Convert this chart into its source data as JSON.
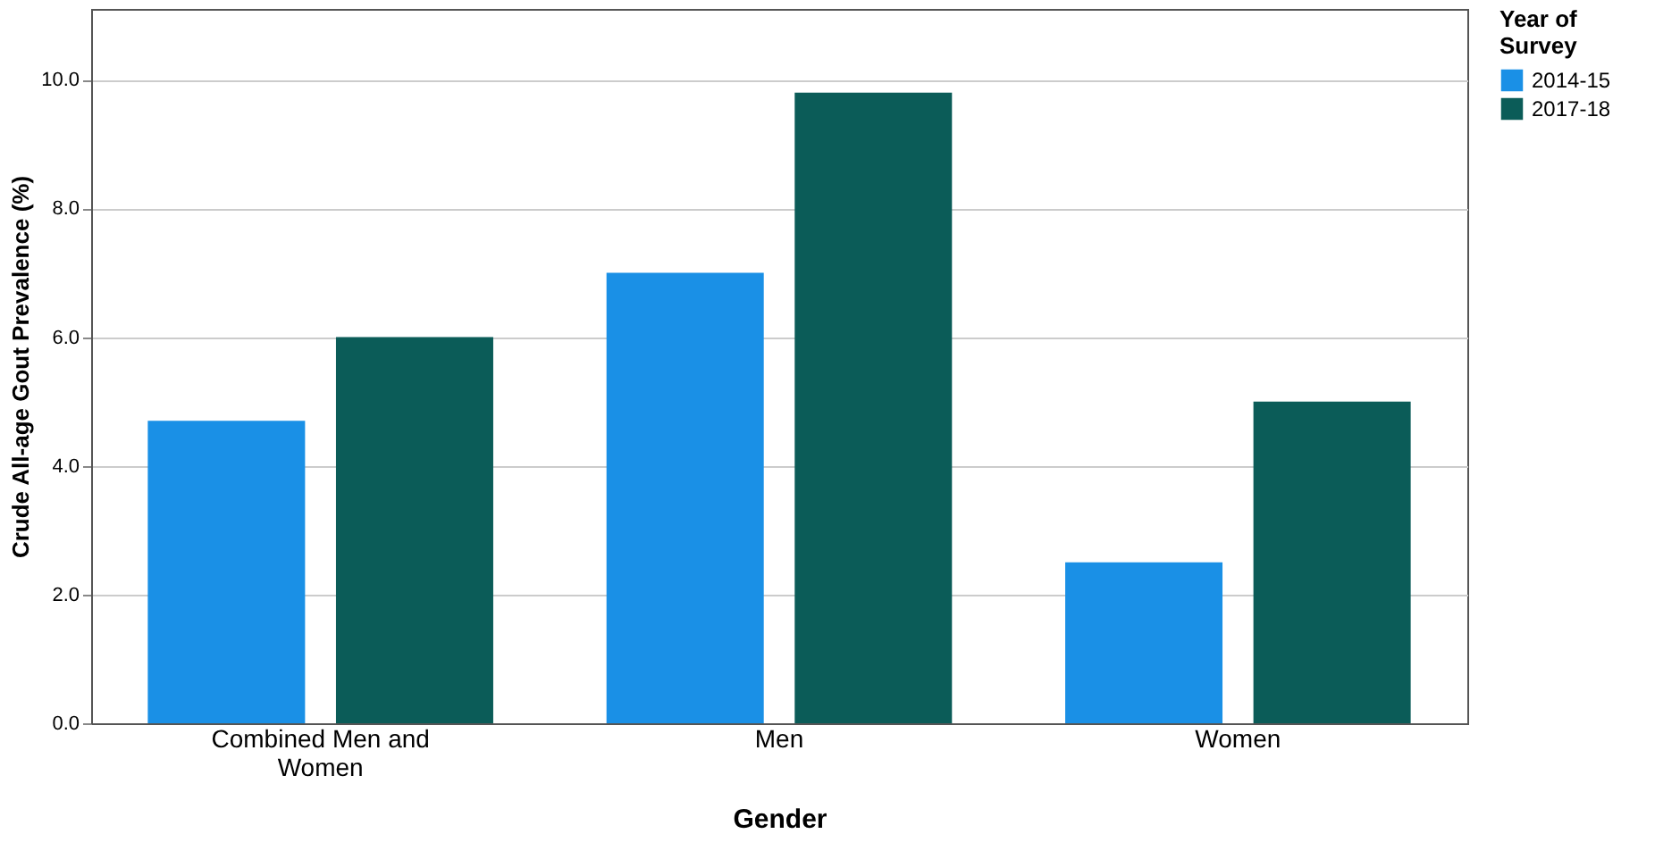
{
  "chart_data": {
    "type": "bar",
    "xlabel": "Gender",
    "ylabel": "Crude All-age Gout Prevalence (%)",
    "legend_title": "Year of Survey",
    "categories": [
      "Combined Men and Women",
      "Men",
      "Women"
    ],
    "series": [
      {
        "name": "2014-15",
        "color": "#1a90e6",
        "values": [
          4.7,
          7.0,
          2.5
        ]
      },
      {
        "name": "2017-18",
        "color": "#0b5c58",
        "values": [
          6.0,
          9.8,
          5.0
        ]
      }
    ],
    "ylim": [
      0,
      11.1
    ],
    "yticks": [
      {
        "value": 0,
        "label": "0.0"
      },
      {
        "value": 2,
        "label": "2.0"
      },
      {
        "value": 4,
        "label": "4.0"
      },
      {
        "value": 6,
        "label": "6.0"
      },
      {
        "value": 8,
        "label": "8.0"
      },
      {
        "value": 10,
        "label": "10.0"
      }
    ],
    "grid": "y",
    "legend": "top right"
  }
}
